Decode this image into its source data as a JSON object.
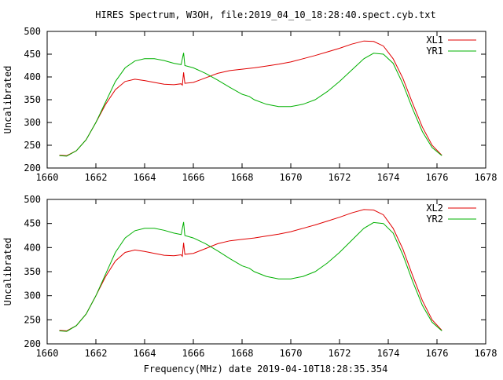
{
  "title": "HIRES Spectrum, W3OH, file:2019_04_10_18:28:40.spect.cyb.txt",
  "footer_label": "Frequency(MHz) date 2019-04-10T18:28:35.354",
  "colors": {
    "red": "#e00000",
    "green": "#00b000",
    "axis": "#000000"
  },
  "chart_data": [
    {
      "type": "line",
      "ylabel": "Uncalibrated",
      "xlim": [
        1660,
        1678
      ],
      "ylim": [
        200,
        500
      ],
      "xticks": [
        1660,
        1662,
        1664,
        1666,
        1668,
        1670,
        1672,
        1674,
        1676,
        1678
      ],
      "yticks": [
        200,
        250,
        300,
        350,
        400,
        450,
        500
      ],
      "grid": false,
      "legend_position": "top-right",
      "series": [
        {
          "name": "XL1",
          "color": "#e00000",
          "x": [
            1660.5,
            1660.8,
            1661.2,
            1661.6,
            1662.0,
            1662.4,
            1662.8,
            1663.2,
            1663.6,
            1664.0,
            1664.4,
            1664.8,
            1665.2,
            1665.5,
            1665.55,
            1665.6,
            1665.65,
            1666.0,
            1666.5,
            1667.0,
            1667.5,
            1668.0,
            1668.5,
            1669.0,
            1669.5,
            1670.0,
            1670.5,
            1671.0,
            1671.5,
            1672.0,
            1672.5,
            1673.0,
            1673.4,
            1673.8,
            1674.2,
            1674.6,
            1675.0,
            1675.4,
            1675.8,
            1676.2
          ],
          "y": [
            228,
            227,
            238,
            262,
            300,
            340,
            372,
            390,
            395,
            392,
            388,
            384,
            383,
            385,
            382,
            410,
            386,
            388,
            398,
            408,
            414,
            417,
            420,
            424,
            428,
            433,
            440,
            447,
            455,
            463,
            472,
            479,
            478,
            468,
            440,
            397,
            342,
            290,
            250,
            228
          ]
        },
        {
          "name": "YR1",
          "color": "#00b000",
          "x": [
            1660.5,
            1660.8,
            1661.2,
            1661.6,
            1662.0,
            1662.4,
            1662.8,
            1663.2,
            1663.6,
            1664.0,
            1664.4,
            1664.8,
            1665.2,
            1665.5,
            1665.55,
            1665.6,
            1665.65,
            1666.0,
            1666.5,
            1667.0,
            1667.5,
            1668.0,
            1668.3,
            1668.5,
            1669.0,
            1669.5,
            1670.0,
            1670.5,
            1671.0,
            1671.5,
            1672.0,
            1672.5,
            1673.0,
            1673.4,
            1673.8,
            1674.2,
            1674.6,
            1675.0,
            1675.4,
            1675.8,
            1676.2
          ],
          "y": [
            227,
            226,
            238,
            262,
            300,
            345,
            390,
            420,
            435,
            440,
            440,
            436,
            430,
            427,
            440,
            453,
            425,
            420,
            408,
            393,
            377,
            362,
            357,
            350,
            340,
            335,
            335,
            340,
            350,
            368,
            390,
            415,
            440,
            452,
            450,
            430,
            385,
            330,
            280,
            245,
            227
          ]
        }
      ]
    },
    {
      "type": "line",
      "ylabel": "Uncalibrated",
      "xlim": [
        1660,
        1678
      ],
      "ylim": [
        200,
        500
      ],
      "xticks": [
        1660,
        1662,
        1664,
        1666,
        1668,
        1670,
        1672,
        1674,
        1676,
        1678
      ],
      "yticks": [
        200,
        250,
        300,
        350,
        400,
        450,
        500
      ],
      "grid": false,
      "legend_position": "top-right",
      "series": [
        {
          "name": "XL2",
          "color": "#e00000",
          "x": [
            1660.5,
            1660.8,
            1661.2,
            1661.6,
            1662.0,
            1662.4,
            1662.8,
            1663.2,
            1663.6,
            1664.0,
            1664.4,
            1664.8,
            1665.2,
            1665.5,
            1665.55,
            1665.6,
            1665.65,
            1666.0,
            1666.5,
            1667.0,
            1667.5,
            1668.0,
            1668.5,
            1669.0,
            1669.5,
            1670.0,
            1670.5,
            1671.0,
            1671.5,
            1672.0,
            1672.5,
            1673.0,
            1673.4,
            1673.8,
            1674.2,
            1674.6,
            1675.0,
            1675.4,
            1675.8,
            1676.2
          ],
          "y": [
            228,
            227,
            238,
            262,
            300,
            340,
            372,
            390,
            395,
            392,
            388,
            384,
            383,
            385,
            382,
            410,
            386,
            388,
            398,
            408,
            414,
            417,
            420,
            424,
            428,
            433,
            440,
            447,
            455,
            463,
            472,
            479,
            478,
            468,
            440,
            397,
            342,
            290,
            250,
            228
          ]
        },
        {
          "name": "YR2",
          "color": "#00b000",
          "x": [
            1660.5,
            1660.8,
            1661.2,
            1661.6,
            1662.0,
            1662.4,
            1662.8,
            1663.2,
            1663.6,
            1664.0,
            1664.4,
            1664.8,
            1665.2,
            1665.5,
            1665.55,
            1665.6,
            1665.65,
            1666.0,
            1666.5,
            1667.0,
            1667.5,
            1668.0,
            1668.3,
            1668.5,
            1669.0,
            1669.5,
            1670.0,
            1670.5,
            1671.0,
            1671.5,
            1672.0,
            1672.5,
            1673.0,
            1673.4,
            1673.8,
            1674.2,
            1674.6,
            1675.0,
            1675.4,
            1675.8,
            1676.2
          ],
          "y": [
            227,
            226,
            238,
            262,
            300,
            345,
            390,
            420,
            435,
            440,
            440,
            436,
            430,
            427,
            440,
            453,
            425,
            420,
            408,
            393,
            377,
            362,
            357,
            350,
            340,
            335,
            335,
            340,
            350,
            368,
            390,
            415,
            440,
            452,
            450,
            430,
            385,
            330,
            280,
            245,
            227
          ]
        }
      ]
    }
  ]
}
